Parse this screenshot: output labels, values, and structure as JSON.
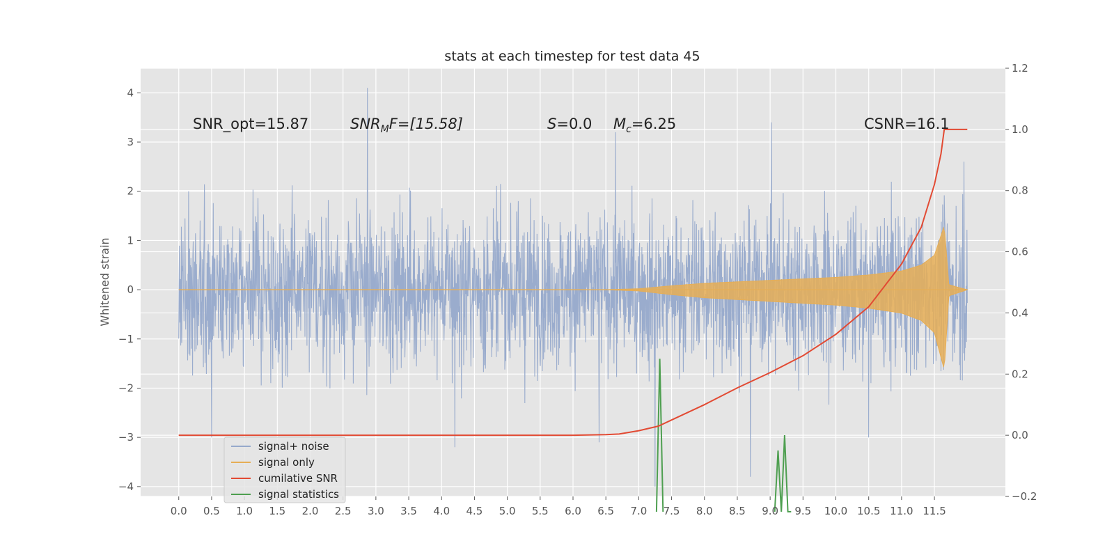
{
  "chart_data": {
    "type": "line",
    "title": "stats at each timestep for test data 45",
    "ylabel": "Whitened strain",
    "xlabel": "",
    "xlim": [
      -0.58,
      12.58
    ],
    "ylim": [
      -4.2,
      4.5
    ],
    "y2lim": [
      -0.2,
      1.2
    ],
    "grid": true,
    "background": "#e5e5e5",
    "x_ticks": [
      0.0,
      0.5,
      1.0,
      1.5,
      2.0,
      2.5,
      3.0,
      3.5,
      4.0,
      4.5,
      5.0,
      5.5,
      6.0,
      6.5,
      7.0,
      7.5,
      8.0,
      8.5,
      9.0,
      9.5,
      10.0,
      10.5,
      11.0,
      11.5
    ],
    "x_tick_labels": [
      "0.0",
      "0.5",
      "1.0",
      "1.5",
      "2.0",
      "2.5",
      "3.0",
      "3.5",
      "4.0",
      "4.5",
      "5.0",
      "5.5",
      "6.0",
      "6.5",
      "7.0",
      "7.5",
      "8.0",
      "8.5",
      "9.0",
      "9.5",
      "10.0",
      "10.5",
      "11.0",
      "11.5"
    ],
    "y_ticks": [
      4,
      3,
      2,
      1,
      0,
      -1,
      -2,
      -3,
      -4
    ],
    "y_tick_labels": [
      "4",
      "3",
      "2",
      "1",
      "0",
      "−1",
      "−2",
      "−3",
      "−4"
    ],
    "y2_ticks": [
      1.2,
      1.0,
      0.8,
      0.6,
      0.4,
      0.2,
      0.0,
      -0.2
    ],
    "y2_tick_labels": [
      "1.2",
      "1.0",
      "0.8",
      "0.6",
      "0.4",
      "0.2",
      "0.0",
      "−0.2"
    ],
    "annotations": {
      "snr_opt": "SNR_opt=15.87",
      "snr_mf_sym": "SNR",
      "snr_mf_sub": "M",
      "snr_mf_rest": "F=[15.58]",
      "s_sym": "S",
      "s_rest": "=0.0",
      "mc_sym": "M",
      "mc_sub": "c",
      "mc_rest": "=6.25",
      "csnr": "CSNR=16.1"
    },
    "legend": {
      "position": "lower-left",
      "entries": [
        "signal+ noise",
        "signal only",
        "cumilative SNR",
        "signal statistics"
      ]
    },
    "series": [
      {
        "name": "signal+ noise",
        "color": "#96a9cb",
        "description": "whitened noise strain, roughly gaussian, amplitude up to about ±4",
        "x_range": [
          0.0,
          12.0
        ],
        "envelope_typical": 1.8,
        "spikes": [
          [
            2.87,
            4.1
          ],
          [
            9.02,
            3.4
          ],
          [
            6.65,
            3.2
          ],
          [
            7.25,
            -4.0
          ],
          [
            8.7,
            -3.8
          ],
          [
            0.5,
            -3.0
          ],
          [
            4.2,
            -3.2
          ],
          [
            6.4,
            -3.1
          ],
          [
            10.5,
            -3.0
          ],
          [
            11.95,
            2.6
          ]
        ]
      },
      {
        "name": "signal only",
        "color": "#e6ae56",
        "description": "chirp signal growing to merger near x=11.7",
        "amplitude_profile": [
          [
            0.0,
            0.0
          ],
          [
            6.5,
            0.0
          ],
          [
            7.0,
            0.02
          ],
          [
            7.5,
            0.08
          ],
          [
            8.0,
            0.13
          ],
          [
            8.5,
            0.16
          ],
          [
            9.0,
            0.19
          ],
          [
            9.5,
            0.22
          ],
          [
            10.0,
            0.25
          ],
          [
            10.5,
            0.3
          ],
          [
            11.0,
            0.38
          ],
          [
            11.3,
            0.5
          ],
          [
            11.5,
            0.7
          ],
          [
            11.65,
            1.3
          ],
          [
            11.72,
            0.1
          ],
          [
            12.0,
            0.0
          ]
        ]
      },
      {
        "name": "cumilative SNR",
        "color": "#e24a33",
        "axis": "right",
        "x": [
          0.0,
          6.0,
          6.5,
          6.7,
          7.0,
          7.3,
          7.5,
          8.0,
          8.5,
          9.0,
          9.5,
          10.0,
          10.5,
          11.0,
          11.3,
          11.5,
          11.6,
          11.65,
          11.7,
          12.0
        ],
        "values": [
          0.0,
          0.0,
          0.002,
          0.004,
          0.015,
          0.03,
          0.05,
          0.1,
          0.155,
          0.205,
          0.26,
          0.33,
          0.42,
          0.56,
          0.68,
          0.82,
          0.92,
          1.0,
          1.0,
          1.0
        ]
      },
      {
        "name": "signal statistics",
        "color": "#4e9f50",
        "axis": "right",
        "x": [
          7.27,
          7.32,
          7.37,
          9.07,
          9.12,
          9.17,
          9.22,
          9.27,
          9.32
        ],
        "values": [
          -0.25,
          0.25,
          -0.25,
          -0.25,
          -0.05,
          -0.25,
          0.0,
          -0.25,
          -0.25
        ]
      }
    ]
  }
}
